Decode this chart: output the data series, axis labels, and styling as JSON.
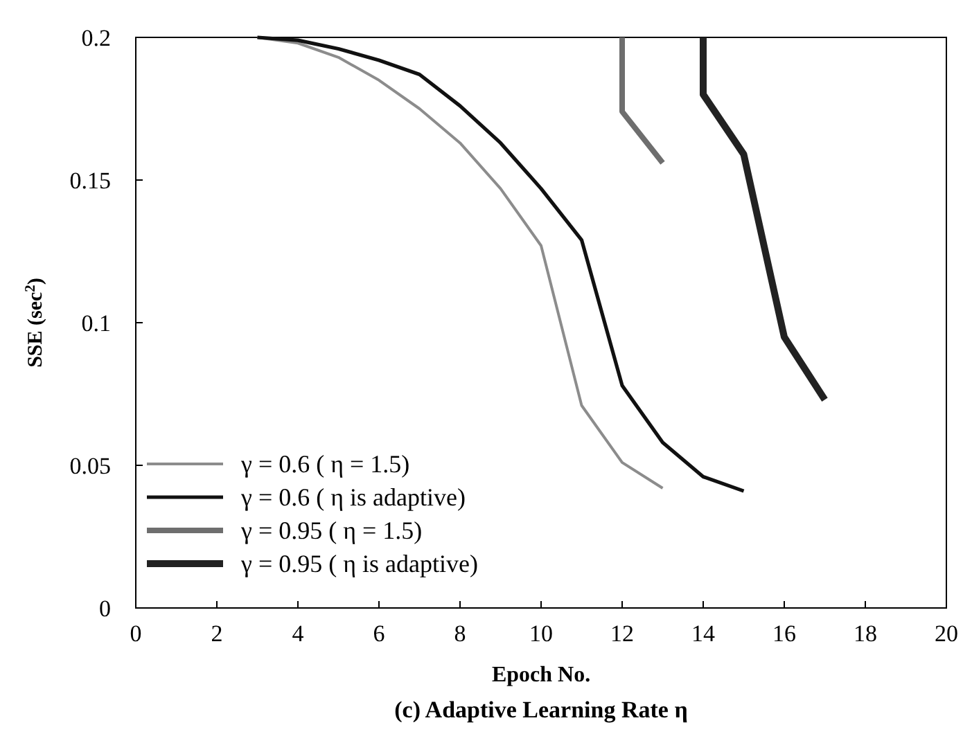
{
  "chart_data": {
    "type": "line",
    "title": "(c)  Adaptive Learning Rate η",
    "xlabel": "Epoch No.",
    "ylabel": "SSE (sec$^{2}$)",
    "xlim": [
      0,
      20
    ],
    "xticks": [
      0,
      2,
      4,
      6,
      8,
      10,
      12,
      14,
      16,
      18,
      20
    ],
    "ylim": [
      0,
      0.2
    ],
    "yticks": [
      0,
      0.05,
      0.1,
      0.15,
      0.2
    ],
    "grid": false,
    "legend": "bottom left",
    "marker": "none",
    "line_style": "solid",
    "series": [
      {
        "name": "γ = 0.6  ( η = 1.5)",
        "color": "#8c8c8c",
        "x": [
          3,
          4,
          5,
          6,
          7,
          8,
          9,
          10,
          11,
          12,
          13
        ],
        "values": [
          0.2,
          0.198,
          0.193,
          0.185,
          0.175,
          0.163,
          0.147,
          0.127,
          0.071,
          0.051,
          0.042
        ]
      },
      {
        "name": "γ = 0.6  ( η  is adaptive)",
        "color": "#111111",
        "x": [
          3,
          4,
          5,
          6,
          7,
          8,
          9,
          10,
          11,
          12,
          13,
          14,
          15
        ],
        "values": [
          0.2,
          0.199,
          0.196,
          0.192,
          0.187,
          0.176,
          0.163,
          0.147,
          0.129,
          0.078,
          0.058,
          0.046,
          0.041
        ]
      },
      {
        "name": "γ = 0.95 ( η = 1.5)",
        "color": "#6e6e6e",
        "x": [
          12,
          12,
          13
        ],
        "values": [
          0.2,
          0.174,
          0.156
        ]
      },
      {
        "name": "γ = 0.95 ( η  is adaptive)",
        "color": "#222222",
        "x": [
          14,
          14,
          15,
          16,
          17
        ],
        "values": [
          0.2,
          0.18,
          0.159,
          0.095,
          0.073
        ]
      }
    ]
  }
}
